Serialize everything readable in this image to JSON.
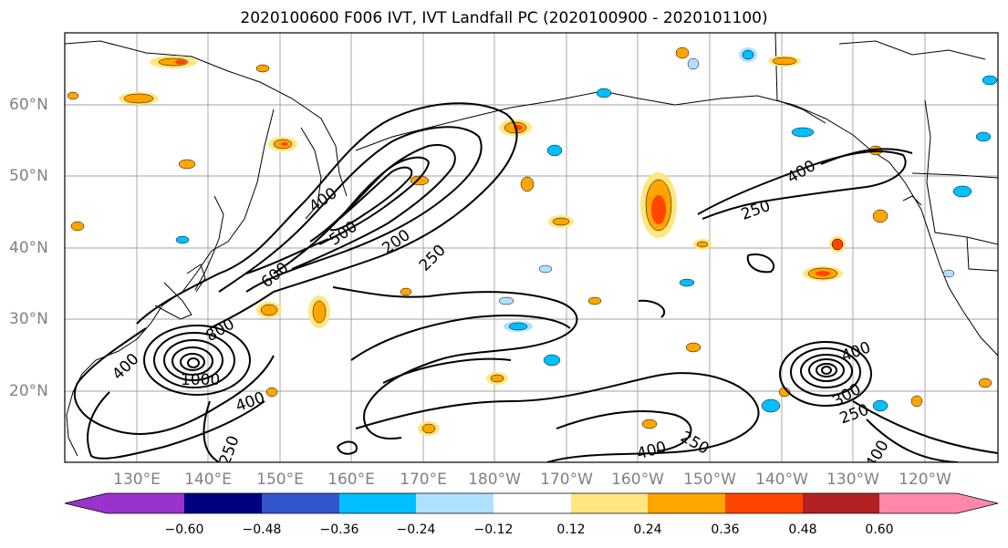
{
  "title": "2020100600 F006 IVT, IVT Landfall PC (2020100900 - 2020101100)",
  "lat_labels": [
    "60°N",
    "50°N",
    "40°N",
    "30°N",
    "20°N"
  ],
  "lon_labels": [
    "130°E",
    "140°E",
    "150°E",
    "160°E",
    "170°E",
    "180°W",
    "170°W",
    "160°W",
    "150°W",
    "140°W",
    "130°W",
    "120°W"
  ],
  "contour_labels": [
    "400",
    "500",
    "200",
    "250",
    "600",
    "800",
    "400",
    "1000",
    "400",
    "250",
    "400",
    "250",
    "400",
    "300",
    "250",
    "400",
    "250",
    "400"
  ],
  "colorbar": {
    "tick_labels": [
      "−0.60",
      "−0.48",
      "−0.36",
      "−0.24",
      "−0.12",
      "0.12",
      "0.24",
      "0.36",
      "0.48",
      "0.60"
    ],
    "colors": [
      "#9933cc",
      "#000080",
      "#3355cc",
      "#00bfff",
      "#b0e0ff",
      "#ffffff",
      "#ffe680",
      "#ffa500",
      "#ff4500",
      "#b22222",
      "#ff88aa"
    ]
  },
  "colors": {
    "contour": "#000000",
    "grid": "#a0a0a0",
    "coast": "#000000",
    "axis_label": "#808080"
  }
}
